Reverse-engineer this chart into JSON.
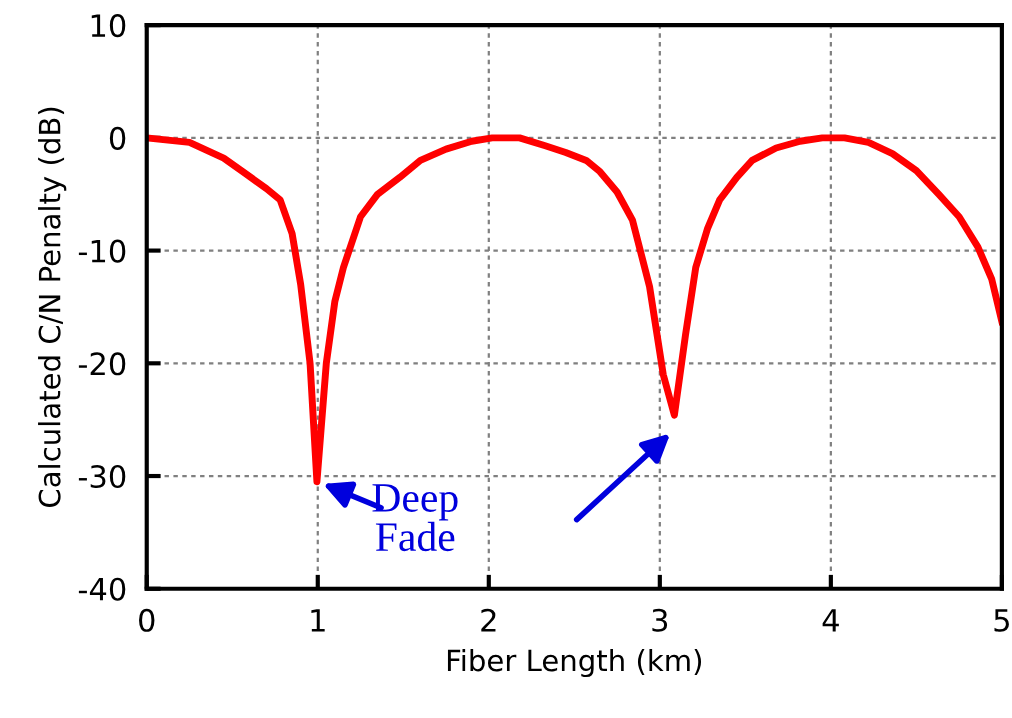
{
  "chart_data": {
    "type": "line",
    "xlabel": "Fiber Length (km)",
    "ylabel": "Calculated C/N Penalty (dB)",
    "series": [
      {
        "color": "#ff0000",
        "x": [
          0,
          0.25,
          0.45,
          0.58,
          0.7,
          0.78,
          0.85,
          0.9,
          0.955,
          0.995,
          1.05,
          1.1,
          1.15,
          1.25,
          1.35,
          1.48,
          1.6,
          1.75,
          1.9,
          2.02,
          2.18,
          2.33,
          2.45,
          2.57,
          2.65,
          2.75,
          2.84,
          2.94,
          3.02,
          3.085,
          3.15,
          3.21,
          3.28,
          3.35,
          3.45,
          3.54,
          3.68,
          3.82,
          3.95,
          4.08,
          4.22,
          4.36,
          4.5,
          4.63,
          4.75,
          4.86,
          4.94,
          5.0
        ],
        "values": [
          0,
          -0.4,
          -1.8,
          -3.2,
          -4.5,
          -5.5,
          -8.5,
          -13,
          -20,
          -30.5,
          -20,
          -14.5,
          -11.5,
          -7,
          -5,
          -3.5,
          -2,
          -1,
          -0.3,
          0,
          0,
          -0.7,
          -1.3,
          -2,
          -3,
          -4.8,
          -7.3,
          -13.2,
          -21,
          -24.6,
          -17.5,
          -11.5,
          -8,
          -5.5,
          -3.5,
          -2,
          -0.9,
          -0.3,
          0,
          0,
          -0.4,
          -1.4,
          -2.9,
          -5,
          -7,
          -9.7,
          -12.5,
          -16.3
        ]
      }
    ],
    "xlim": [
      0,
      5
    ],
    "xticks": [
      0,
      1,
      2,
      3,
      4,
      5
    ],
    "ylim": [
      -40,
      10
    ],
    "yticks": [
      -40,
      -30,
      -20,
      -10,
      0,
      10
    ],
    "grid": true,
    "line_style": "solid",
    "marker": "none",
    "legend": false,
    "annotations": [
      {
        "text": "Deep\nFade",
        "x": 1.0,
        "y": -30.5
      }
    ]
  }
}
